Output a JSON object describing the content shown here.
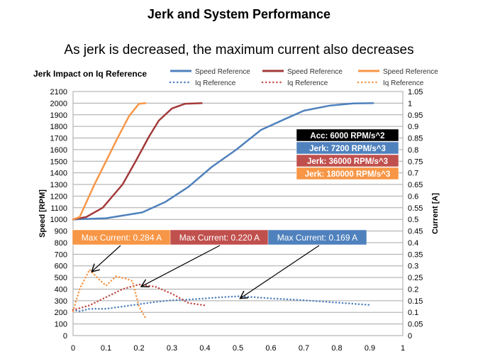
{
  "slide": {
    "title": "Jerk and System Performance",
    "subtitle": "As jerk is decreased, the maximum current also decreases"
  },
  "chart_data": {
    "type": "line",
    "title": "Jerk Impact on Iq Reference",
    "xlabel": "",
    "ylabel": "Speed [RPM]",
    "y2label": "Current [A]",
    "xlim": [
      0,
      1
    ],
    "ylim": [
      0,
      2100
    ],
    "y2lim": [
      0,
      1.05
    ],
    "xticks": [
      "0",
      "0.1",
      "0.2",
      "0.3",
      "0.4",
      "0.5",
      "0.6",
      "0.7",
      "0.8",
      "0.9",
      "1"
    ],
    "yticks": [
      "0",
      "100",
      "200",
      "300",
      "400",
      "500",
      "600",
      "700",
      "800",
      "900",
      "1000",
      "1100",
      "1200",
      "1300",
      "1400",
      "1500",
      "1600",
      "1700",
      "1800",
      "1900",
      "2000",
      "2100"
    ],
    "y2ticks": [
      "0",
      "0.05",
      "0.1",
      "0.15",
      "0.2",
      "0.25",
      "0.3",
      "0.35",
      "0.4",
      "0.45",
      "0.5",
      "0.55",
      "0.6",
      "0.65",
      "0.7",
      "0.75",
      "0.8",
      "0.85",
      "0.9",
      "0.95",
      "1",
      "1.05"
    ],
    "grid": "horizontal",
    "legend_position": "top",
    "series": [
      {
        "name": "Speed Reference",
        "axis": "left",
        "style": "solid",
        "color": "#4f81bd",
        "x": [
          0,
          0.1,
          0.21,
          0.28,
          0.35,
          0.42,
          0.495,
          0.57,
          0.64,
          0.7,
          0.78,
          0.85,
          0.91
        ],
        "y": [
          1000,
          1010,
          1060,
          1150,
          1280,
          1450,
          1600,
          1770,
          1860,
          1935,
          1980,
          1998,
          2000
        ]
      },
      {
        "name": "Speed Reference",
        "axis": "left",
        "style": "solid",
        "color": "#a33a3a",
        "x": [
          0,
          0.04,
          0.09,
          0.15,
          0.19,
          0.23,
          0.26,
          0.3,
          0.34,
          0.39
        ],
        "y": [
          1000,
          1020,
          1100,
          1300,
          1500,
          1710,
          1850,
          1955,
          1995,
          2000
        ]
      },
      {
        "name": "Speed Reference",
        "axis": "left",
        "style": "solid",
        "color": "#f79646",
        "x": [
          0,
          0.02,
          0.065,
          0.1,
          0.135,
          0.17,
          0.2,
          0.22
        ],
        "y": [
          1000,
          1020,
          1300,
          1500,
          1700,
          1890,
          1995,
          2000
        ]
      },
      {
        "name": "Iq Reference",
        "axis": "right",
        "style": "dotted",
        "color": "#4f81bd",
        "x": [
          0,
          0.02,
          0.05,
          0.1,
          0.15,
          0.2,
          0.25,
          0.3,
          0.35,
          0.4,
          0.45,
          0.5,
          0.55,
          0.6,
          0.7,
          0.8,
          0.9
        ],
        "y": [
          0.11,
          0.105,
          0.115,
          0.115,
          0.125,
          0.135,
          0.145,
          0.152,
          0.155,
          0.16,
          0.165,
          0.169,
          0.165,
          0.16,
          0.152,
          0.142,
          0.132
        ]
      },
      {
        "name": "Iq Reference",
        "axis": "right",
        "style": "dotted",
        "color": "#c0504d",
        "x": [
          0,
          0.05,
          0.1,
          0.15,
          0.2,
          0.25,
          0.3,
          0.35,
          0.4
        ],
        "y": [
          0.11,
          0.13,
          0.165,
          0.2,
          0.22,
          0.21,
          0.18,
          0.14,
          0.13
        ]
      },
      {
        "name": "Iq Reference",
        "axis": "right",
        "style": "dotted",
        "color": "#f79646",
        "x": [
          0,
          0.02,
          0.05,
          0.08,
          0.1,
          0.13,
          0.16,
          0.18,
          0.2,
          0.22
        ],
        "y": [
          0.105,
          0.2,
          0.284,
          0.24,
          0.215,
          0.255,
          0.245,
          0.235,
          0.125,
          0.075
        ]
      }
    ],
    "annotations": {
      "info_boxes": [
        {
          "text": "Acc: 6000 RPM/s^2",
          "color": "#000000"
        },
        {
          "text": "Jerk: 7200 RPM/s^3",
          "color": "#4f81bd"
        },
        {
          "text": "Jerk: 36000 RPM/s^3",
          "color": "#c0504d"
        },
        {
          "text": "Jerk: 180000 RPM/s^3",
          "color": "#f79646"
        }
      ],
      "max_current": [
        {
          "text": "Max Current: 0.284 A",
          "color": "#f79646",
          "peak_x": 0.05,
          "peak_y": 0.284
        },
        {
          "text": "Max Current: 0.220 A",
          "color": "#c0504d",
          "peak_x": 0.2,
          "peak_y": 0.22
        },
        {
          "text": "Max Current: 0.169 A",
          "color": "#4f81bd",
          "peak_x": 0.5,
          "peak_y": 0.169
        }
      ]
    }
  }
}
